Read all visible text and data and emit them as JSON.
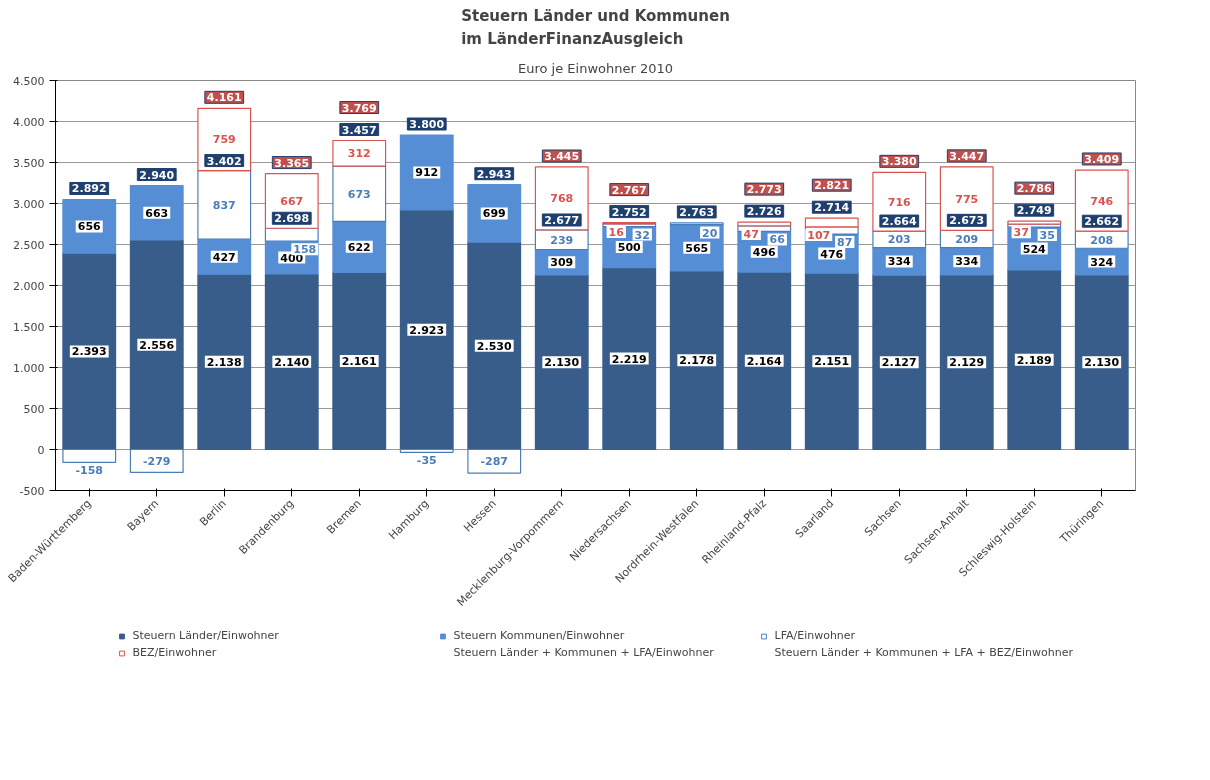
{
  "chart_data": {
    "type": "bar",
    "stacked": true,
    "title": "Steuern Länder und Kommunen\nim LänderFinanzAusgleich",
    "subtitle": "Euro je Einwohner 2010",
    "categories": [
      "Baden-Württemberg",
      "Bayern",
      "Berlin",
      "Brandenburg",
      "Bremen",
      "Hamburg",
      "Hessen",
      "Mecklenburg-Vorpommern",
      "Niedersachsen",
      "Nordrhein-Westfalen",
      "Rheinland-Pfalz",
      "Saarland",
      "Sachsen",
      "Sachsen-Anhalt",
      "Schleswig-Holstein",
      "Thüringen"
    ],
    "ylim": [
      -500,
      4500
    ],
    "yticks": [
      {
        "value": -500,
        "label": "-500"
      },
      0,
      500,
      {
        "value": 1000,
        "label": "1.000"
      },
      {
        "value": 1500,
        "label": "1.500"
      },
      {
        "value": 2000,
        "label": "2.000"
      },
      {
        "value": 2500,
        "label": "2.500"
      },
      {
        "value": 3000,
        "label": "3.000"
      },
      {
        "value": 3500,
        "label": "3.500"
      },
      {
        "value": 4000,
        "label": "4.000"
      },
      {
        "value": 4500,
        "label": "4.500"
      }
    ],
    "grid": "y",
    "legend": "bottom",
    "series": [
      {
        "name": "Steuern Länder/Einwohner",
        "color": "#385d8a",
        "values": [
          2393,
          2556,
          2138,
          2140,
          2161,
          2923,
          2530,
          2130,
          2219,
          2178,
          2164,
          2151,
          2127,
          2129,
          2189,
          2130
        ],
        "value_labels": [
          "2.393",
          "2.556",
          "2.138",
          "2.140",
          "2.161",
          "2.923",
          "2.530",
          "2.130",
          "2.219",
          "2.178",
          "2.164",
          "2.151",
          "2.127",
          "2.129",
          "2.189",
          "2.130"
        ]
      },
      {
        "name": "Steuern Kommunen/Einwohner",
        "color": "#558ed5",
        "values": [
          656,
          663,
          427,
          400,
          622,
          912,
          699,
          309,
          500,
          565,
          496,
          476,
          334,
          334,
          524,
          324
        ],
        "value_labels": [
          "656",
          "663",
          "427",
          "400",
          "622",
          "912",
          "699",
          "309",
          "500",
          "565",
          "496",
          "476",
          "334",
          "334",
          "524",
          "324"
        ]
      },
      {
        "name": "LFA/Einwohner",
        "line_style": "solid",
        "color": "#4a7ebb",
        "values": [
          -158,
          -279,
          837,
          158,
          673,
          -35,
          -287,
          239,
          32,
          20,
          66,
          87,
          203,
          209,
          35,
          208
        ],
        "value_labels": [
          "-158",
          "-279",
          "837",
          "158",
          "673",
          "-35",
          "-287",
          "239",
          "32",
          "20",
          "66",
          "87",
          "203",
          "209",
          "35",
          "208"
        ]
      },
      {
        "name": "BEZ/Einwohner",
        "line_style": "solid",
        "color": "#d9534f",
        "values": [
          null,
          null,
          759,
          667,
          312,
          null,
          null,
          768,
          16,
          null,
          47,
          107,
          716,
          775,
          37,
          746
        ],
        "value_labels": [
          null,
          null,
          "759",
          "667",
          "312",
          null,
          null,
          "768",
          "16",
          null,
          "47",
          "107",
          "716",
          "775",
          "37",
          "746"
        ]
      }
    ],
    "annotations": [
      "Steuern Länder + Kommunen + LFA/Einwohner",
      "Steuern Länder + Kommunen + LFA + BEZ/Einwohner",
      {
        "text": "2.892",
        "x": "Baden-Württemberg",
        "y": 3049
      },
      {
        "text": "2.940",
        "x": "Bayern",
        "y": 3219
      },
      {
        "text": "3.402",
        "x": "Berlin",
        "y": 3402
      },
      {
        "text": "4.161",
        "x": "Berlin",
        "y": 4161
      },
      {
        "text": "2.698",
        "x": "Brandenburg",
        "y": 2698
      },
      {
        "text": "3.365",
        "x": "Brandenburg",
        "y": 3365
      },
      {
        "text": "3.457",
        "x": "Bremen",
        "y": 3457
      },
      {
        "text": "3.769",
        "x": "Bremen",
        "y": 3769
      },
      {
        "text": "3.800",
        "x": "Hamburg",
        "y": 3800
      },
      {
        "text": "2.943",
        "x": "Hessen",
        "y": 3229
      },
      {
        "text": "2.677",
        "x": "Mecklenburg-Vorpommern",
        "y": 2677
      },
      {
        "text": "3.445",
        "x": "Mecklenburg-Vorpommern",
        "y": 3445
      },
      {
        "text": "2.752",
        "x": "Niedersachsen",
        "y": 2752
      },
      {
        "text": "2.767",
        "x": "Niedersachsen",
        "y": 2767
      },
      {
        "text": "2.763",
        "x": "Nordrhein-Westfalen",
        "y": 2763
      },
      {
        "text": "2.726",
        "x": "Rheinland-Pfalz",
        "y": 2726
      },
      {
        "text": "2.773",
        "x": "Rheinland-Pfalz",
        "y": 2773
      },
      {
        "text": "2.714",
        "x": "Saarland",
        "y": 2714
      },
      {
        "text": "2.821",
        "x": "Saarland",
        "y": 2821
      },
      {
        "text": "2.664",
        "x": "Sachsen",
        "y": 2664
      },
      {
        "text": "3.380",
        "x": "Sachsen",
        "y": 3380
      },
      {
        "text": "2.673",
        "x": "Sachsen-Anhalt",
        "y": 2673
      },
      {
        "text": "3.447",
        "x": "Sachsen-Anhalt",
        "y": 3447
      },
      {
        "text": "2.749",
        "x": "Schleswig-Holstein",
        "y": 2749
      },
      {
        "text": "2.786",
        "x": "Schleswig-Holstein",
        "y": 2786
      },
      {
        "text": "2.662",
        "x": "Thüringen",
        "y": 2662
      },
      {
        "text": "3.409",
        "x": "Thüringen",
        "y": 3409
      }
    ]
  }
}
